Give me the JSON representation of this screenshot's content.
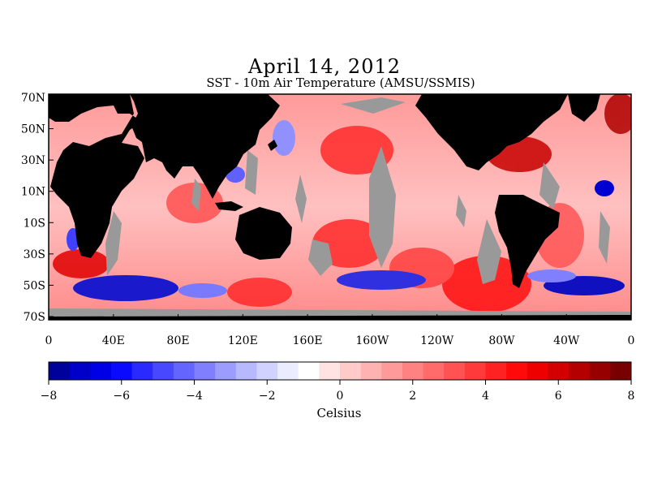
{
  "title": "April 14, 2012",
  "subtitle": "SST - 10m Air Temperature (AMSU/SSMIS)",
  "map": {
    "lat_labels": [
      "70N",
      "50N",
      "30N",
      "10N",
      "10S",
      "30S",
      "50S",
      "70S"
    ],
    "lon_labels": [
      "0",
      "40E",
      "80E",
      "120E",
      "160E",
      "160W",
      "120W",
      "80W",
      "40W",
      "0"
    ],
    "colors": {
      "land": "#000000",
      "missing": "#999999",
      "warm": "#ff2020",
      "cool": "#2020ff"
    }
  },
  "colorbar": {
    "min": -8,
    "max": 8,
    "tick_labels": [
      "-8",
      "-6",
      "-4",
      "-2",
      "0",
      "2",
      "4",
      "6",
      "8"
    ],
    "colors": [
      "#00009a",
      "#0000c8",
      "#0000e6",
      "#0a0aff",
      "#2a2aff",
      "#4848ff",
      "#6464ff",
      "#8080ff",
      "#9c9cff",
      "#b8b8ff",
      "#d2d2ff",
      "#ececff",
      "#ffffff",
      "#ffe2e2",
      "#ffcaca",
      "#ffb2b2",
      "#ff9a9a",
      "#ff8282",
      "#ff6a6a",
      "#ff5252",
      "#ff3a3a",
      "#ff2222",
      "#ff0a0a",
      "#ee0000",
      "#d20000",
      "#b40000",
      "#960000",
      "#780000"
    ],
    "units": "Celsius"
  }
}
